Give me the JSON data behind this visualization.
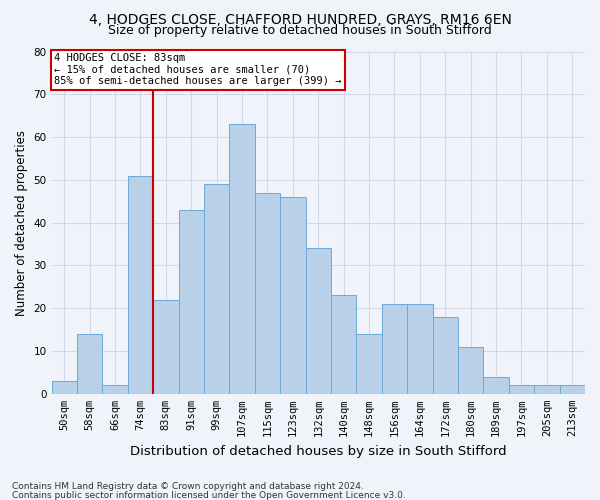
{
  "title1": "4, HODGES CLOSE, CHAFFORD HUNDRED, GRAYS, RM16 6EN",
  "title2": "Size of property relative to detached houses in South Stifford",
  "xlabel": "Distribution of detached houses by size in South Stifford",
  "ylabel": "Number of detached properties",
  "categories": [
    "50sqm",
    "58sqm",
    "66sqm",
    "74sqm",
    "83sqm",
    "91sqm",
    "99sqm",
    "107sqm",
    "115sqm",
    "123sqm",
    "132sqm",
    "140sqm",
    "148sqm",
    "156sqm",
    "164sqm",
    "172sqm",
    "180sqm",
    "189sqm",
    "197sqm",
    "205sqm",
    "213sqm"
  ],
  "values": [
    3,
    14,
    2,
    51,
    22,
    43,
    49,
    63,
    47,
    46,
    34,
    23,
    14,
    21,
    21,
    18,
    11,
    4,
    2,
    2,
    2
  ],
  "bar_color": "#b8d0e8",
  "bar_edge_color": "#6aaad4",
  "vline_index": 4,
  "vline_color": "#cc0000",
  "ylim": [
    0,
    80
  ],
  "yticks": [
    0,
    10,
    20,
    30,
    40,
    50,
    60,
    70,
    80
  ],
  "annotation_line1": "4 HODGES CLOSE: 83sqm",
  "annotation_line2": "← 15% of detached houses are smaller (70)",
  "annotation_line3": "85% of semi-detached houses are larger (399) →",
  "annotation_box_color": "#ffffff",
  "annotation_box_edge": "#cc0000",
  "footer1": "Contains HM Land Registry data © Crown copyright and database right 2024.",
  "footer2": "Contains public sector information licensed under the Open Government Licence v3.0.",
  "bg_color": "#f0f4fa",
  "plot_bg_color": "#f0f4fa",
  "grid_color": "#d0d8e8",
  "title_fontsize": 10,
  "subtitle_fontsize": 9,
  "tick_fontsize": 7.5,
  "ylabel_fontsize": 8.5,
  "xlabel_fontsize": 9.5,
  "footer_fontsize": 6.5
}
